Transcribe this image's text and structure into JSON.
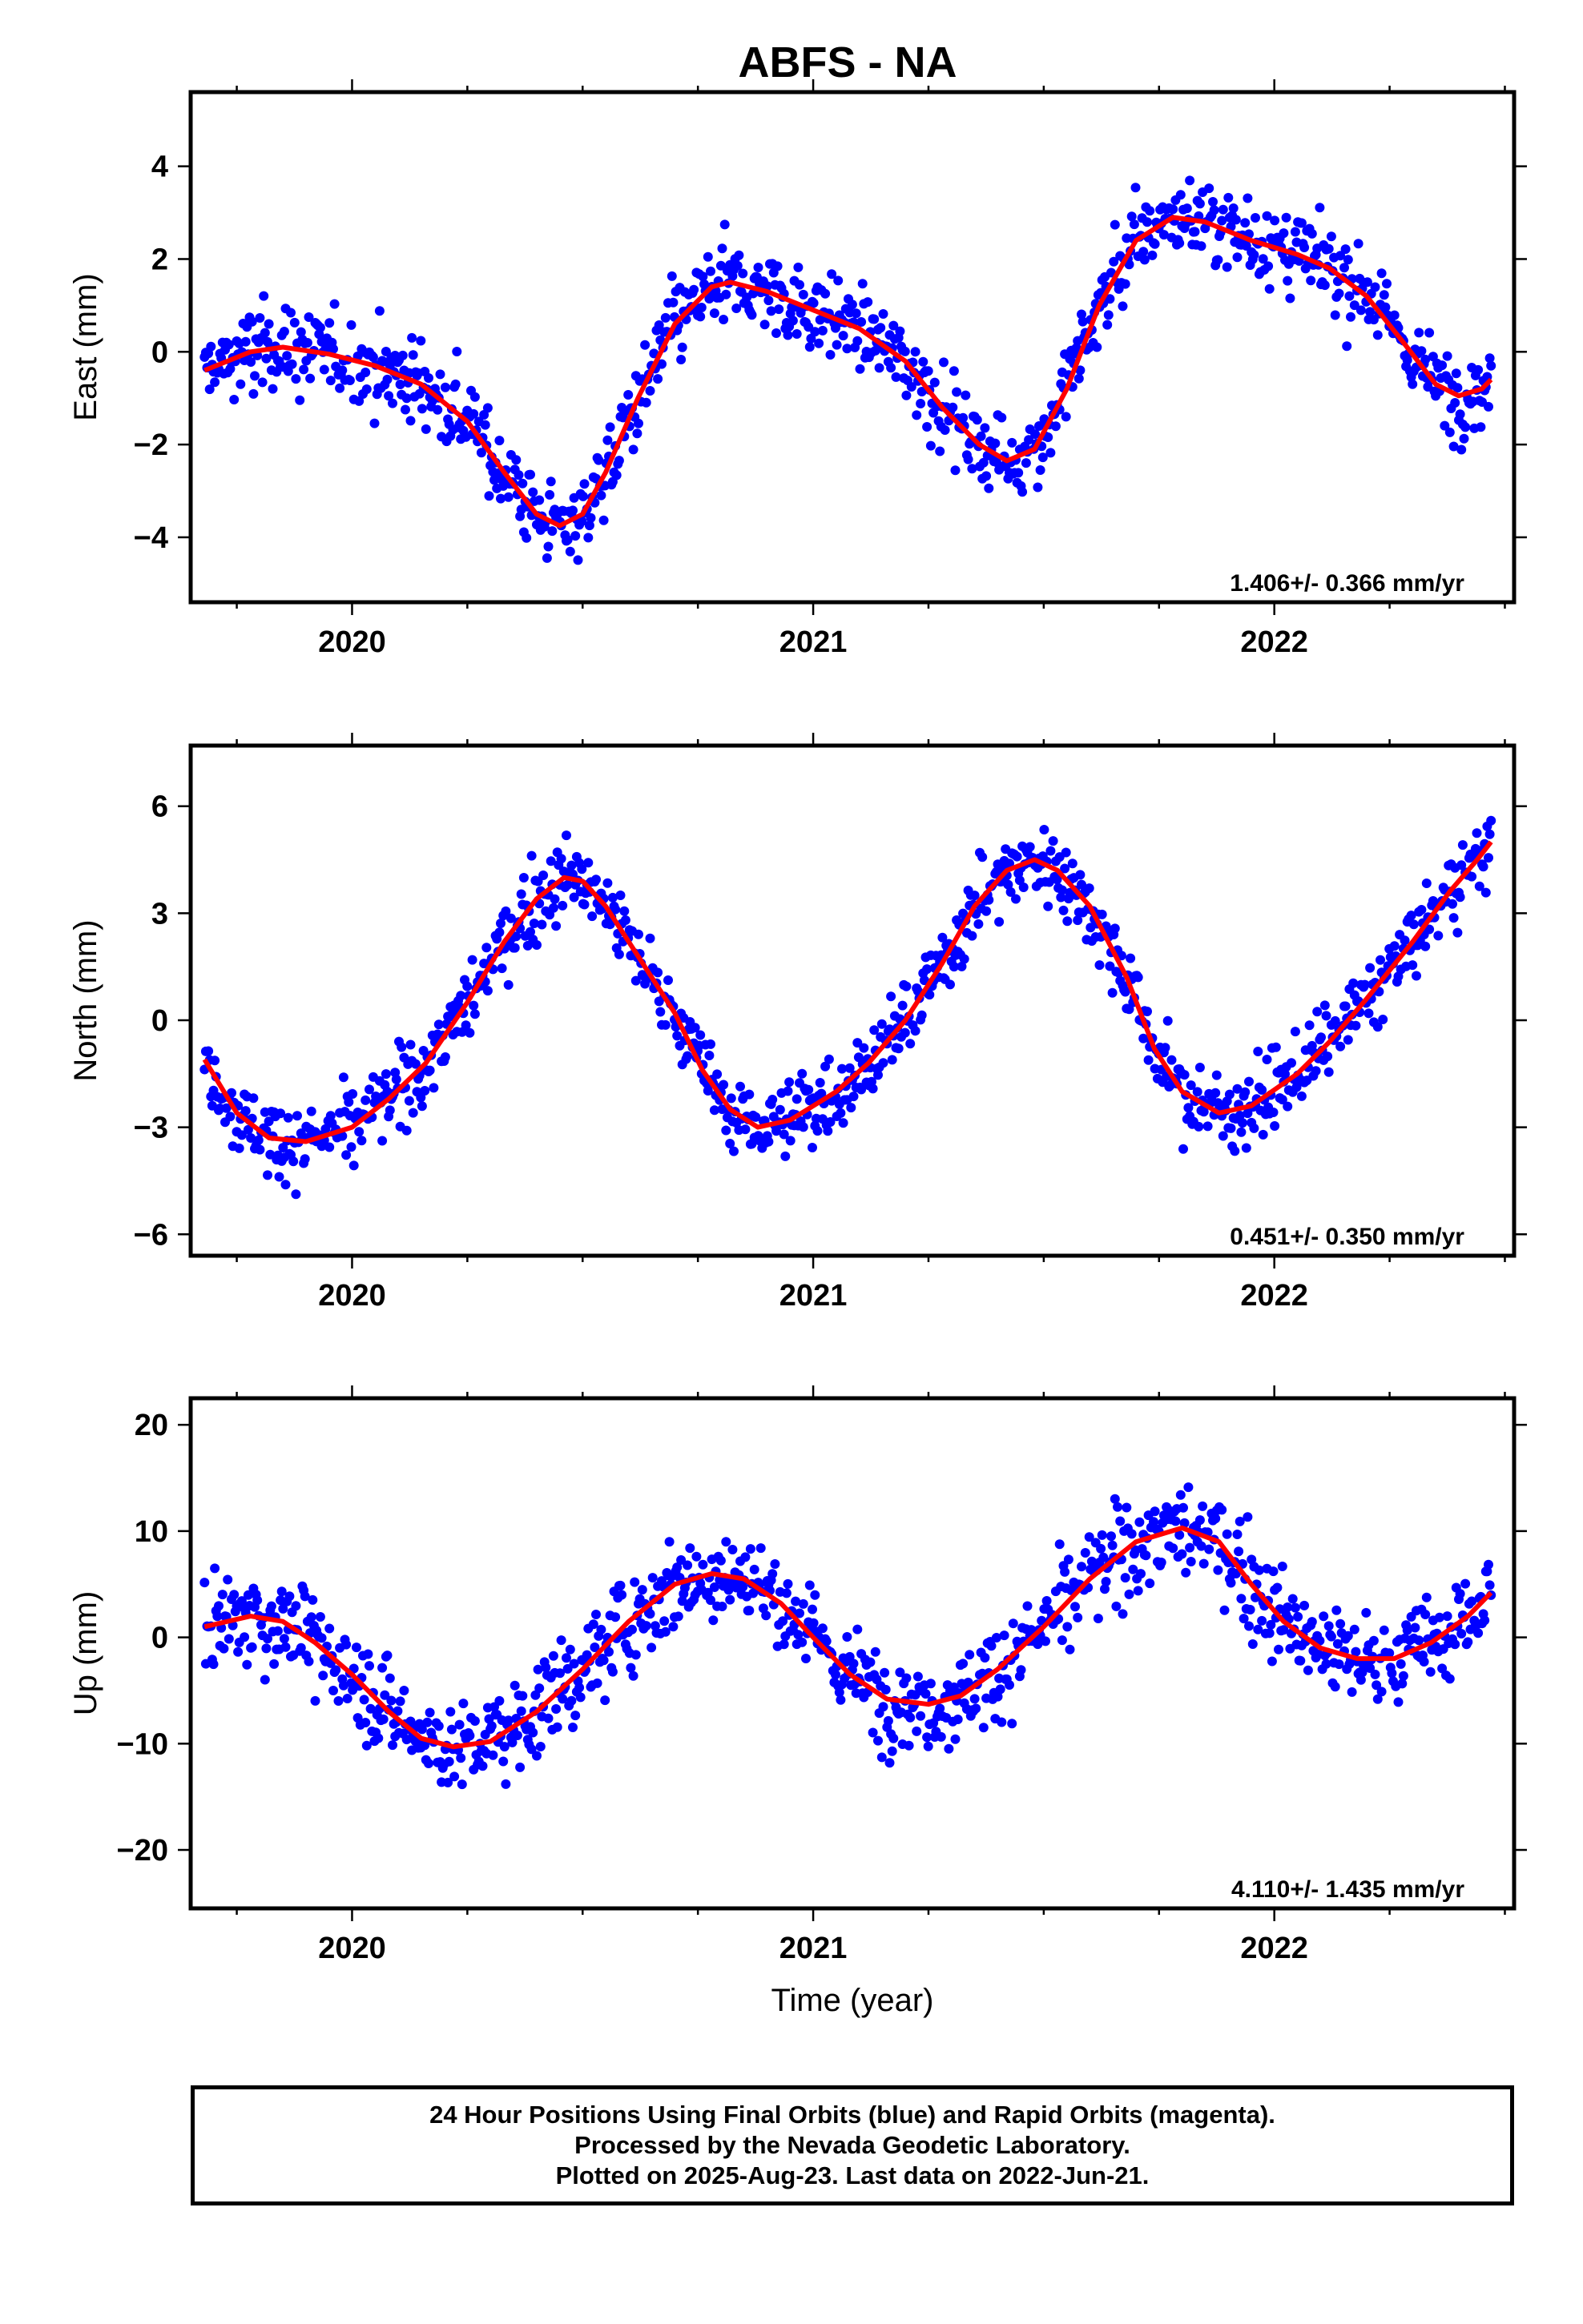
{
  "title": "ABFS - NA",
  "footer": {
    "line1": "24 Hour Positions Using Final Orbits (blue) and Rapid Orbits (magenta).",
    "line2": "Processed by the Nevada Geodetic Laboratory.",
    "line3": "Plotted on 2025-Aug-23. Last data on 2022-Jun-21."
  },
  "colors": {
    "points": "#0000ff",
    "model": "#ff0000",
    "axes": "#000000"
  },
  "chart_data": [
    {
      "type": "scatter",
      "title": "ABFS - NA",
      "ylabel": "East (mm)",
      "xlabel": "",
      "xlim": [
        2019.65,
        2022.52
      ],
      "ylim": [
        -5.4,
        5.6
      ],
      "yticks": [
        -4,
        -2,
        0,
        2,
        4
      ],
      "xticks": [
        2020,
        2021,
        2022
      ],
      "rate": "1.406+/- 0.366 mm/yr",
      "series": [],
      "observations_shape": {
        "x_start": 2019.68,
        "x_end": 2022.47,
        "noise_mm": 0.75
      },
      "model_curve": [
        [
          2019.68,
          -0.4
        ],
        [
          2019.78,
          0.0
        ],
        [
          2019.85,
          0.1
        ],
        [
          2019.95,
          -0.05
        ],
        [
          2020.05,
          -0.3
        ],
        [
          2020.15,
          -0.7
        ],
        [
          2020.25,
          -1.5
        ],
        [
          2020.33,
          -2.6
        ],
        [
          2020.4,
          -3.5
        ],
        [
          2020.45,
          -3.75
        ],
        [
          2020.5,
          -3.5
        ],
        [
          2020.55,
          -2.6
        ],
        [
          2020.62,
          -1.0
        ],
        [
          2020.7,
          0.6
        ],
        [
          2020.78,
          1.4
        ],
        [
          2020.82,
          1.5
        ],
        [
          2020.9,
          1.3
        ],
        [
          2021.0,
          0.9
        ],
        [
          2021.1,
          0.5
        ],
        [
          2021.2,
          -0.2
        ],
        [
          2021.28,
          -1.2
        ],
        [
          2021.36,
          -2.0
        ],
        [
          2021.42,
          -2.35
        ],
        [
          2021.48,
          -2.1
        ],
        [
          2021.55,
          -0.8
        ],
        [
          2021.62,
          1.0
        ],
        [
          2021.7,
          2.4
        ],
        [
          2021.78,
          2.9
        ],
        [
          2021.85,
          2.8
        ],
        [
          2021.95,
          2.4
        ],
        [
          2022.05,
          2.1
        ],
        [
          2022.12,
          1.8
        ],
        [
          2022.2,
          1.2
        ],
        [
          2022.28,
          0.2
        ],
        [
          2022.35,
          -0.7
        ],
        [
          2022.4,
          -0.95
        ],
        [
          2022.45,
          -0.8
        ],
        [
          2022.47,
          -0.6
        ]
      ]
    },
    {
      "type": "scatter",
      "ylabel": "North (mm)",
      "xlabel": "",
      "xlim": [
        2019.65,
        2022.52
      ],
      "ylim": [
        -6.6,
        7.7
      ],
      "yticks": [
        -6,
        -3,
        0,
        3,
        6
      ],
      "xticks": [
        2020,
        2021,
        2022
      ],
      "rate": "0.451+/- 0.350 mm/yr",
      "series": [],
      "observations_shape": {
        "x_start": 2019.68,
        "x_end": 2022.47,
        "noise_mm": 0.9
      },
      "model_curve": [
        [
          2019.68,
          -1.1
        ],
        [
          2019.75,
          -2.6
        ],
        [
          2019.82,
          -3.3
        ],
        [
          2019.9,
          -3.4
        ],
        [
          2020.0,
          -3.0
        ],
        [
          2020.08,
          -2.2
        ],
        [
          2020.16,
          -1.2
        ],
        [
          2020.25,
          0.5
        ],
        [
          2020.33,
          2.2
        ],
        [
          2020.4,
          3.4
        ],
        [
          2020.46,
          4.0
        ],
        [
          2020.5,
          3.9
        ],
        [
          2020.55,
          3.2
        ],
        [
          2020.62,
          1.8
        ],
        [
          2020.7,
          0.2
        ],
        [
          2020.76,
          -1.4
        ],
        [
          2020.82,
          -2.5
        ],
        [
          2020.88,
          -3.0
        ],
        [
          2020.95,
          -2.8
        ],
        [
          2021.05,
          -2.0
        ],
        [
          2021.12,
          -1.2
        ],
        [
          2021.2,
          0.0
        ],
        [
          2021.28,
          1.6
        ],
        [
          2021.35,
          3.2
        ],
        [
          2021.42,
          4.2
        ],
        [
          2021.48,
          4.5
        ],
        [
          2021.53,
          4.2
        ],
        [
          2021.6,
          3.2
        ],
        [
          2021.68,
          1.2
        ],
        [
          2021.74,
          -0.8
        ],
        [
          2021.8,
          -2.0
        ],
        [
          2021.88,
          -2.6
        ],
        [
          2021.95,
          -2.4
        ],
        [
          2022.05,
          -1.5
        ],
        [
          2022.12,
          -0.6
        ],
        [
          2022.2,
          0.6
        ],
        [
          2022.3,
          2.2
        ],
        [
          2022.38,
          3.6
        ],
        [
          2022.44,
          4.5
        ],
        [
          2022.47,
          5.0
        ]
      ]
    },
    {
      "type": "scatter",
      "ylabel": "Up (mm)",
      "xlabel": "Time (year)",
      "xlim": [
        2019.65,
        2022.52
      ],
      "ylim": [
        -25.5,
        22.5
      ],
      "yticks": [
        -20,
        -10,
        0,
        10,
        20
      ],
      "xticks": [
        2020,
        2021,
        2022
      ],
      "rate": "4.110+/- 1.435 mm/yr",
      "series": [],
      "observations_shape": {
        "x_start": 2019.68,
        "x_end": 2022.47,
        "noise_mm": 3.8
      },
      "model_curve": [
        [
          2019.68,
          1.0
        ],
        [
          2019.78,
          2.0
        ],
        [
          2019.85,
          1.5
        ],
        [
          2019.92,
          -0.5
        ],
        [
          2020.0,
          -3.5
        ],
        [
          2020.08,
          -7.0
        ],
        [
          2020.15,
          -9.5
        ],
        [
          2020.22,
          -10.3
        ],
        [
          2020.3,
          -9.8
        ],
        [
          2020.4,
          -7.0
        ],
        [
          2020.5,
          -3.0
        ],
        [
          2020.6,
          1.5
        ],
        [
          2020.7,
          5.0
        ],
        [
          2020.78,
          6.0
        ],
        [
          2020.85,
          5.5
        ],
        [
          2020.93,
          3.2
        ],
        [
          2021.0,
          0.0
        ],
        [
          2021.08,
          -3.5
        ],
        [
          2021.16,
          -5.8
        ],
        [
          2021.25,
          -6.3
        ],
        [
          2021.32,
          -5.5
        ],
        [
          2021.4,
          -3.0
        ],
        [
          2021.5,
          1.0
        ],
        [
          2021.6,
          5.5
        ],
        [
          2021.7,
          9.0
        ],
        [
          2021.8,
          10.3
        ],
        [
          2021.88,
          9.0
        ],
        [
          2021.95,
          5.0
        ],
        [
          2022.02,
          1.5
        ],
        [
          2022.1,
          -1.0
        ],
        [
          2022.18,
          -2.0
        ],
        [
          2022.26,
          -2.0
        ],
        [
          2022.34,
          -0.5
        ],
        [
          2022.42,
          2.0
        ],
        [
          2022.47,
          4.2
        ]
      ]
    }
  ]
}
